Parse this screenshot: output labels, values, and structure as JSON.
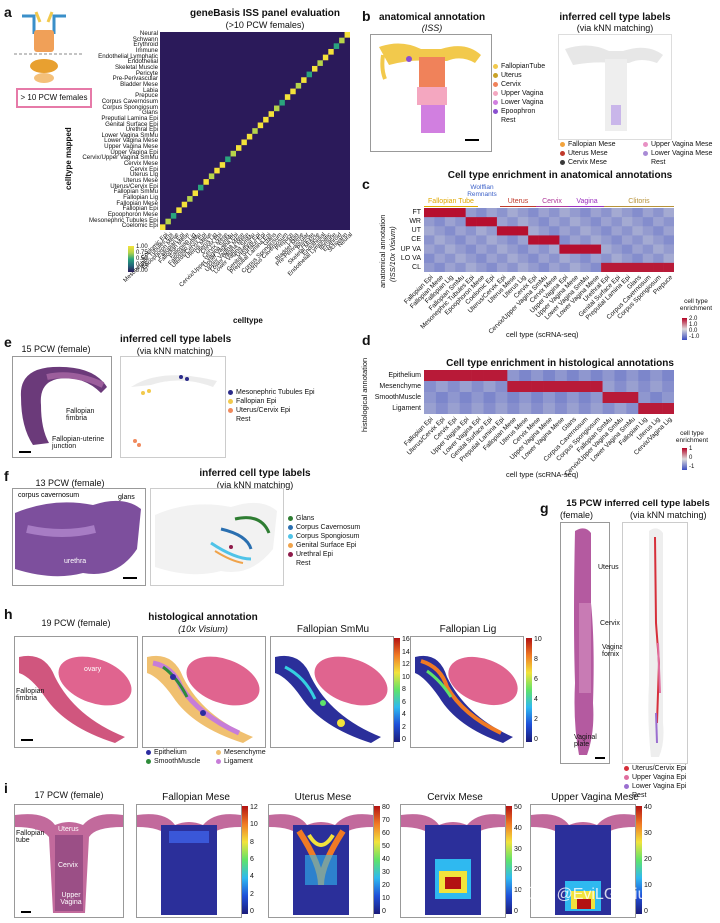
{
  "panels": {
    "a": {
      "label": "a",
      "title": "geneBasis ISS panel evaluation",
      "subtitle": "(>10 PCW females)",
      "inset_label": "> 10 PCW females",
      "ylabel": "celltype mapped",
      "xlabel": "celltype",
      "colorbar_ticks": [
        "1.00",
        "0.75",
        "0.50",
        "0.25",
        "0.00"
      ],
      "rows": [
        "Neural",
        "Schwann",
        "Erythroid",
        "Immune",
        "Endothelial Lymphatic",
        "Endothelial",
        "Skeletal Muscle",
        "Pericyte",
        "Pre-Perivascular",
        "Bladder Mese",
        "Labia",
        "Prepuce",
        "Corpus Cavernosum",
        "Corpus Spongiosum",
        "Glans",
        "Preputial Lamina Epi",
        "Genital Surface Epi",
        "Urethral Epi",
        "Lower Vagina SmMu",
        "Lower Vagina Mese",
        "Upper Vagina Mese",
        "Upper Vagina Epi",
        "Cervix/Upper Vagina SmMu",
        "Cervix Mese",
        "Cervix Epi",
        "Uterus Lig",
        "Uterus Mese",
        "Uterus/Cervix Epi",
        "Fallopian SmMu",
        "Fallopian Lig",
        "Fallopian Mese",
        "Fallopian Epi",
        "Epoophoron Mese",
        "Mesonephric Tubules Epi",
        "Coelomic Epi"
      ]
    },
    "b": {
      "label": "b",
      "left_title": "anatomical annotation",
      "left_sub": "(ISS)",
      "right_title": "inferred cell type labels",
      "right_sub": "(via kNN matching)",
      "left_legend": [
        {
          "name": "FallopianTube",
          "color": "#f2c94c"
        },
        {
          "name": "Uterus",
          "color": "#c9a227"
        },
        {
          "name": "Cervix",
          "color": "#f0825a"
        },
        {
          "name": "Upper Vagina",
          "color": "#f4a7c0"
        },
        {
          "name": "Lower Vagina",
          "color": "#d17fe0"
        },
        {
          "name": "Epoophron",
          "color": "#8a4fd0"
        },
        {
          "name": "Rest",
          "color": ""
        }
      ],
      "right_legend": [
        {
          "name": "Fallopian Mese",
          "color": "#f2a33c"
        },
        {
          "name": "Uterus Mese",
          "color": "#c0392b"
        },
        {
          "name": "Cervix Mese",
          "color": "#3a3a3a"
        },
        {
          "name": "Upper Vagina Mese",
          "color": "#e891c4"
        },
        {
          "name": "Lower Vagina Mese",
          "color": "#a98bd6"
        },
        {
          "name": "Rest",
          "color": ""
        }
      ]
    },
    "c": {
      "label": "c",
      "title": "Cell type enrichment in anatomical annotations",
      "groups": [
        {
          "name": "Fallopian Tube",
          "color": "#e0a800"
        },
        {
          "name": "Wolffian Remnants",
          "color": "#3a5fc8"
        },
        {
          "name": "Uterus",
          "color": "#c0392b"
        },
        {
          "name": "Cervix",
          "color": "#b0389a"
        },
        {
          "name": "Vagina",
          "color": "#9b30c0"
        },
        {
          "name": "Clitoris",
          "color": "#b8933a"
        }
      ],
      "ylabel_line1": "anatomical annotation",
      "ylabel_line2": "(ISS/10x Visium)",
      "rows": [
        "FT",
        "WR",
        "UT",
        "CE",
        "UP VA",
        "LO VA",
        "CL"
      ],
      "cols": [
        "Fallopian Epi",
        "Fallopian Mese",
        "Fallopian Lig",
        "Fallopian SmMu",
        "Mesonephric Tubules Epi",
        "Epoophoron Mese",
        "Coelomic Epi",
        "Uterus/Cervix Epi",
        "Uterus Mese",
        "Uterus Lig",
        "Cervix Epi",
        "Cervix/Upper Vagina SmMu",
        "Cervix Mese",
        "Upper Vagina Epi",
        "Upper Vagina Mese",
        "Lower Vagina SmMu",
        "Lower Vagina Mese",
        "Urethral Epi",
        "Genital Surface Epi",
        "Preputial Lamina Epi",
        "Glans",
        "Corpus Cavernosum",
        "Corpus Spongiosum",
        "Prepuce"
      ],
      "xlabel": "cell type (scRNA-seq)",
      "legend_title": "cell type enrichment",
      "legend_ticks": [
        "2.0",
        "1.0",
        "0.0",
        "-1.0"
      ]
    },
    "d": {
      "label": "d",
      "title": "Cell type enrichment in histological annotations",
      "ylabel": "histological annotation",
      "rows": [
        "Epithelium",
        "Mesenchyme",
        "SmoothMuscle",
        "Ligament"
      ],
      "cols": [
        "Fallopian Epi",
        "Uterus/Cervix Epi",
        "Cervix Epi",
        "Upper Vagina Epi",
        "Lower Vagina Epi",
        "Genital Surface Epi",
        "Preputial Lamina Epi",
        "Fallopian Mese",
        "Uterus Mese",
        "Cervix Mese",
        "Upper Vagina Mese",
        "Lower Vagina Mese",
        "Glans",
        "Corpus Cavernosum",
        "Corpus Spongiosum",
        "Fallopian SmMu",
        "Cervix/Upper Vagina SmMu",
        "Lower Vagina SmMu",
        "Fallopian Lig",
        "Uterus Lig",
        "Cervix/Vagina Lig"
      ],
      "xlabel": "cell type (scRNA-seq)",
      "legend_title": "cell type enrichment",
      "legend_ticks": [
        "1",
        "0",
        "-1"
      ]
    },
    "e": {
      "label": "e",
      "left_title": "15 PCW (female)",
      "right_title": "inferred cell type labels",
      "right_sub": "(via kNN matching)",
      "anno1": "Fallopian fimbria",
      "anno2": "Fallopian-uterine junction",
      "legend": [
        {
          "name": "Mesonephric Tubules Epi",
          "color": "#2c2c8a"
        },
        {
          "name": "Fallopian Epi",
          "color": "#f2c94c"
        },
        {
          "name": "Uterus/Cervix Epi",
          "color": "#f08a5d"
        },
        {
          "name": "Rest",
          "color": ""
        }
      ]
    },
    "f": {
      "label": "f",
      "left_title": "13 PCW (female)",
      "right_title": "inferred cell type labels",
      "right_sub": "(via kNN matching)",
      "anno1": "corpus cavernosum",
      "anno2": "glans",
      "anno3": "urethra",
      "legend": [
        {
          "name": "Glans",
          "color": "#2e7d32"
        },
        {
          "name": "Corpus Cavernosum",
          "color": "#2a6fb0"
        },
        {
          "name": "Corpus Spongiosum",
          "color": "#4fc3e8"
        },
        {
          "name": "Genital Surface Epi",
          "color": "#f0a34a"
        },
        {
          "name": "Urethral Epi",
          "color": "#8e1b4a"
        },
        {
          "name": "Rest",
          "color": ""
        }
      ]
    },
    "g": {
      "label": "g",
      "title": "15 PCW inferred cell type labels",
      "left_sub": "(female)",
      "right_sub": "(via kNN matching)",
      "anno1": "Uterus",
      "anno2": "Cervix",
      "anno3": "Vaginal fornix",
      "anno4": "Vaginal plate",
      "legend": [
        {
          "name": "Uterus/Cervix Epi",
          "color": "#d62f3a"
        },
        {
          "name": "Upper Vagina Epi",
          "color": "#e06fa0"
        },
        {
          "name": "Lower Vagina Epi",
          "color": "#9b6fd0"
        },
        {
          "name": "Rest",
          "color": ""
        }
      ]
    },
    "h": {
      "label": "h",
      "t1": "19 PCW (female)",
      "t2": "histological annotation",
      "t2sub": "(10x Visium)",
      "t3": "Fallopian SmMu",
      "t4": "Fallopian Lig",
      "anno1": "Fallopian fimbria",
      "anno2": "ovary",
      "legend": [
        {
          "name": "Epithelium",
          "color": "#2c2ca0"
        },
        {
          "name": "SmoothMuscle",
          "color": "#2e8b3a"
        },
        {
          "name": "Mesenchyme",
          "color": "#f0c070"
        },
        {
          "name": "Ligament",
          "color": "#c77dd8"
        }
      ],
      "cb3": [
        "16",
        "14",
        "12",
        "10",
        "8",
        "6",
        "4",
        "2",
        "0"
      ],
      "cb4": [
        "10",
        "8",
        "6",
        "4",
        "2",
        "0"
      ]
    },
    "i": {
      "label": "i",
      "t1": "17 PCW (female)",
      "t2": "Fallopian Mese",
      "t3": "Uterus Mese",
      "t4": "Cervix Mese",
      "t5": "Upper Vagina Mese",
      "anno_tube": "Fallopian tube",
      "anno_uterus": "Uterus",
      "anno_cervix": "Cervix",
      "anno_vagina": "Upper Vagina",
      "cb2": [
        "12",
        "10",
        "8",
        "6",
        "4",
        "2",
        "0"
      ],
      "cb3": [
        "80",
        "70",
        "60",
        "50",
        "40",
        "30",
        "20",
        "10",
        "0"
      ],
      "cb4": [
        "50",
        "40",
        "30",
        "20",
        "10",
        "0"
      ],
      "cb5": [
        "40",
        "30",
        "20",
        "10",
        "0"
      ]
    }
  },
  "watermark": "知乎 @EviLGenius"
}
